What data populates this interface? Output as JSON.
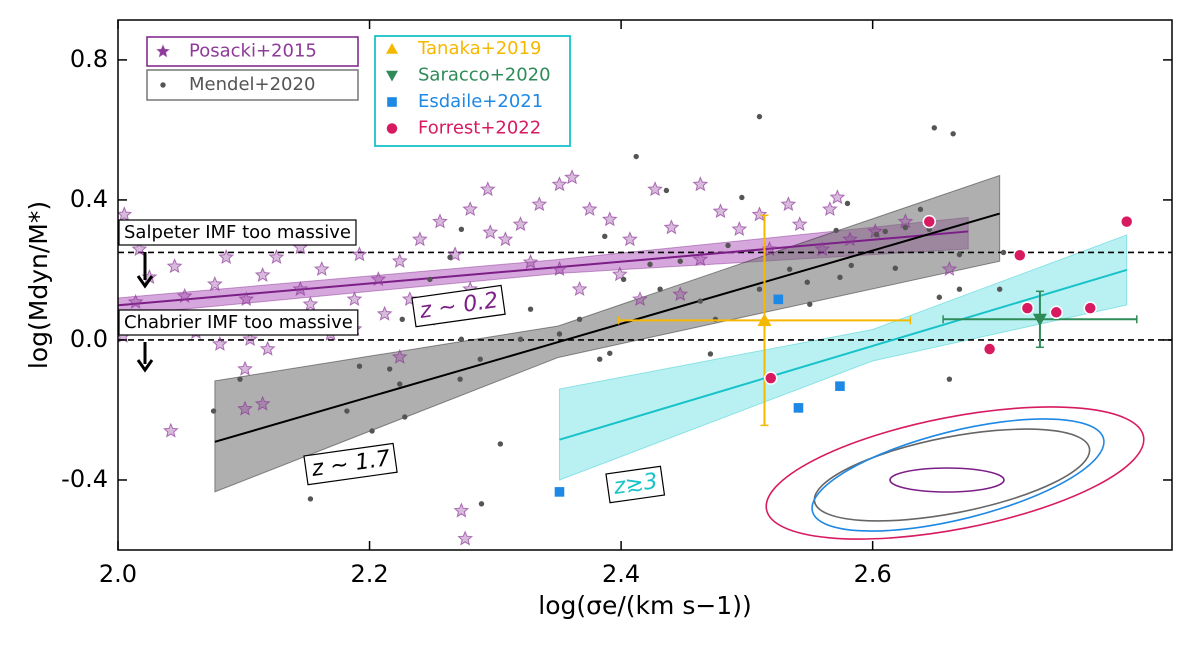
{
  "chart_data": {
    "type": "scatter",
    "xlabel": "log(σe/(km s−1))",
    "ylabel": "log(Mdyn/M*)",
    "xlim": [
      2.0,
      2.838
    ],
    "ylim": [
      -0.6,
      0.914
    ],
    "xticks": [
      {
        "value": 2,
        "label": "2.0"
      },
      2.2,
      2.4,
      2.6
    ],
    "yticks": [
      0.8,
      0.4,
      {
        "value": 0,
        "label": "0.0"
      },
      -0.4
    ],
    "legend": "upper left",
    "hlines": [
      0.25,
      0
    ],
    "annotations": [
      "Salpeter IMF too massive",
      "Chabrier IMF too massive",
      "z ∼ 0.2",
      "z ∼ 1.7",
      "z≳3"
    ],
    "fits": [
      {
        "color": "#7b1f86",
        "band_color": "#b45fc0",
        "x": [
          2.0,
          2.35,
          2.676
        ],
        "y": [
          0.099,
          0.208,
          0.31
        ],
        "lower": [
          0.07,
          0.19,
          0.26
        ],
        "upper": [
          0.12,
          0.23,
          0.35
        ]
      },
      {
        "color": "#000000",
        "band_color": "#6e6e6e",
        "x": [
          2.077,
          2.35,
          2.701
        ],
        "y": [
          -0.291,
          -0.006,
          0.361
        ],
        "lower": [
          -0.434,
          -0.05,
          0.225
        ],
        "upper": [
          -0.117,
          0.04,
          0.47
        ]
      },
      {
        "color": "#17c3c8",
        "band_color": "#7fe6e9",
        "x": [
          2.351,
          2.6,
          2.802
        ],
        "y": [
          -0.285,
          -0.017,
          0.2
        ],
        "lower": [
          -0.4,
          -0.06,
          0.1
        ],
        "upper": [
          -0.14,
          0.03,
          0.3
        ]
      }
    ],
    "series": [
      {
        "name": "Posacki+2015",
        "color": "#8e3a9a",
        "marker": "star",
        "x": [
          2.005,
          2.069,
          2.086,
          2.045,
          2.025,
          2.053,
          2.014,
          2.033,
          2.004,
          2.062,
          2.083,
          2.102,
          2.115,
          2.126,
          2.145,
          2.162,
          2.18,
          2.188,
          2.207,
          2.224,
          2.24,
          2.256,
          2.268,
          2.28,
          2.294,
          2.308,
          2.32,
          2.335,
          2.351,
          2.361,
          2.375,
          2.391,
          2.407,
          2.427,
          2.44,
          2.463,
          2.479,
          2.494,
          2.518,
          2.542,
          2.566,
          2.582,
          2.602,
          2.626,
          2.661,
          2.081,
          2.101,
          2.119,
          2.137,
          2.153,
          2.169,
          2.188,
          2.212,
          2.232,
          2.248,
          2.351,
          2.367,
          2.399,
          2.415,
          2.447,
          2.463,
          2.51,
          2.533,
          2.56,
          2.572,
          2.042,
          2.101,
          2.115,
          2.273,
          2.276,
          2.296,
          2.192,
          2.077,
          2.017,
          2.328,
          2.28,
          2.145,
          2.105,
          2.224
        ],
        "y": [
          0.358,
          0.321,
          0.236,
          0.21,
          0.179,
          0.125,
          0.108,
          0.051,
          0.011,
          0.022,
          0.065,
          0.116,
          0.185,
          0.236,
          0.264,
          0.202,
          0.316,
          0.116,
          0.173,
          0.225,
          0.287,
          0.338,
          0.244,
          0.373,
          0.43,
          0.287,
          0.33,
          0.387,
          0.444,
          0.464,
          0.373,
          0.344,
          0.287,
          0.43,
          0.321,
          0.444,
          0.367,
          0.316,
          0.259,
          0.33,
          0.373,
          0.287,
          0.31,
          0.338,
          0.202,
          -0.012,
          -0.083,
          -0.026,
          0.059,
          0.102,
          0.017,
          0.031,
          0.074,
          0.116,
          0.059,
          0.202,
          0.145,
          0.187,
          0.116,
          0.13,
          0.23,
          0.358,
          0.387,
          0.259,
          0.407,
          -0.26,
          -0.197,
          -0.183,
          -0.488,
          -0.568,
          0.307,
          0.244,
          0.159,
          0.259,
          0.222,
          0.145,
          0.145,
          0.002,
          -0.049
        ]
      },
      {
        "name": "Mendel+2020",
        "color": "#555555",
        "marker": "dot",
        "x": [
          2.51,
          2.412,
          2.337,
          2.436,
          2.496,
          2.485,
          2.58,
          2.571,
          2.583,
          2.574,
          2.548,
          2.638,
          2.61,
          2.603,
          2.626,
          2.645,
          2.669,
          2.704,
          2.618,
          2.669,
          2.701,
          2.653,
          2.717,
          2.649,
          2.664,
          2.273,
          2.264,
          2.248,
          2.24,
          2.226,
          2.273,
          2.288,
          2.32,
          2.272,
          2.224,
          2.216,
          2.192,
          2.182,
          2.202,
          2.228,
          2.304,
          2.289,
          2.153,
          2.076,
          2.097,
          2.383,
          2.391,
          2.471,
          2.463,
          2.475,
          2.431,
          2.402,
          2.423,
          2.447,
          2.387,
          2.367,
          2.328,
          2.351,
          2.51,
          2.534,
          2.661,
          2.55
        ],
        "y": [
          0.638,
          0.524,
          0.606,
          0.427,
          0.407,
          0.27,
          0.39,
          0.313,
          0.213,
          0.179,
          0.165,
          0.373,
          0.31,
          0.301,
          0.321,
          0.316,
          0.244,
          0.25,
          0.205,
          0.145,
          0.145,
          0.122,
          0.247,
          0.606,
          0.589,
          0.316,
          0.236,
          0.173,
          0.082,
          0.059,
          0.002,
          -0.055,
          0.002,
          -0.112,
          -0.126,
          -0.083,
          -0.075,
          -0.203,
          -0.26,
          -0.22,
          -0.297,
          -0.468,
          -0.454,
          -0.203,
          -0.112,
          -0.055,
          -0.038,
          -0.04,
          0.111,
          0.059,
          0.145,
          0.173,
          0.216,
          0.225,
          0.296,
          0.059,
          0.088,
          0.017,
          0.145,
          0.202,
          -0.112,
          0.102
        ]
      },
      {
        "name": "Tanaka+2019",
        "color": "#f5b800",
        "marker": "triangle-up",
        "x": [
          2.514
        ],
        "y": [
          0.056
        ],
        "xerr": [
          0.116
        ],
        "yerr": [
          0.3
        ]
      },
      {
        "name": "Saracco+2020",
        "color": "#2e8b57",
        "marker": "triangle-down",
        "x": [
          2.733
        ],
        "y": [
          0.059
        ],
        "xerr": [
          0.077
        ],
        "yerr": [
          0.08
        ]
      },
      {
        "name": "Esdaile+2021",
        "color": "#1e88e5",
        "marker": "square",
        "x": [
          2.525,
          2.351,
          2.541,
          2.574
        ],
        "y": [
          0.116,
          -0.434,
          -0.194,
          -0.132
        ]
      },
      {
        "name": "Forrest+2022",
        "color": "#d81b60",
        "marker": "circle",
        "x": [
          2.645,
          2.717,
          2.723,
          2.746,
          2.773,
          2.693,
          2.519,
          2.802
        ],
        "y": [
          0.338,
          0.242,
          0.091,
          0.079,
          0.091,
          -0.026,
          -0.109,
          0.338
        ]
      }
    ]
  }
}
